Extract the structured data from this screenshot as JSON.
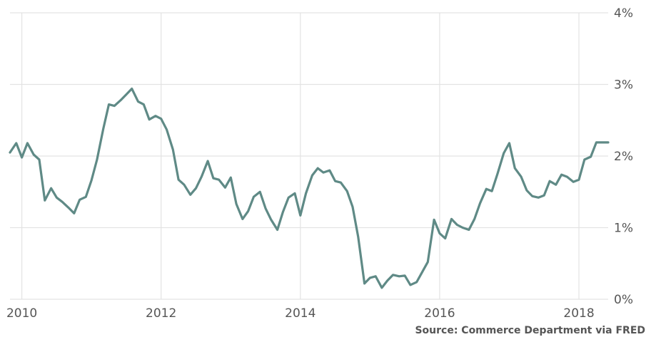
{
  "source": "Source: Commerce Department via FRED",
  "colors": {
    "line": "#5f8a86",
    "grid": "#e3e3e3",
    "text": "#555555"
  },
  "chart_data": {
    "type": "line",
    "title": "",
    "xlabel": "",
    "ylabel": "",
    "grid": true,
    "legend": "none",
    "xlim": [
      2009.83,
      2018.42
    ],
    "ylim": [
      0,
      4
    ],
    "x_ticks": [
      {
        "value": 2010,
        "label": "2010"
      },
      {
        "value": 2012,
        "label": "2012"
      },
      {
        "value": 2014,
        "label": "2014"
      },
      {
        "value": 2016,
        "label": "2016"
      },
      {
        "value": 2018,
        "label": "2018"
      }
    ],
    "y_ticks": [
      {
        "value": 0,
        "label": "0%"
      },
      {
        "value": 1,
        "label": "1%"
      },
      {
        "value": 2,
        "label": "2%"
      },
      {
        "value": 3,
        "label": "3%"
      },
      {
        "value": 4,
        "label": "4%"
      }
    ],
    "series": [
      {
        "x": [
          2009.83,
          2009.92,
          2010.0,
          2010.08,
          2010.17,
          2010.25,
          2010.33,
          2010.42,
          2010.5,
          2010.58,
          2010.67,
          2010.75,
          2010.83,
          2010.92,
          2011.0,
          2011.08,
          2011.17,
          2011.25,
          2011.33,
          2011.42,
          2011.5,
          2011.58,
          2011.67,
          2011.75,
          2011.83,
          2011.92,
          2012.0,
          2012.08,
          2012.17,
          2012.25,
          2012.33,
          2012.42,
          2012.5,
          2012.58,
          2012.67,
          2012.75,
          2012.83,
          2012.92,
          2013.0,
          2013.08,
          2013.17,
          2013.25,
          2013.33,
          2013.42,
          2013.5,
          2013.58,
          2013.67,
          2013.75,
          2013.83,
          2013.92,
          2014.0,
          2014.08,
          2014.17,
          2014.25,
          2014.33,
          2014.42,
          2014.5,
          2014.58,
          2014.67,
          2014.75,
          2014.83,
          2014.92,
          2015.0,
          2015.08,
          2015.17,
          2015.25,
          2015.33,
          2015.42,
          2015.5,
          2015.58,
          2015.67,
          2015.75,
          2015.83,
          2015.92,
          2016.0,
          2016.08,
          2016.17,
          2016.25,
          2016.33,
          2016.42,
          2016.5,
          2016.58,
          2016.67,
          2016.75,
          2016.83,
          2016.92,
          2017.0,
          2017.08,
          2017.17,
          2017.25,
          2017.33,
          2017.42,
          2017.5,
          2017.58,
          2017.67,
          2017.75,
          2017.83,
          2017.92,
          2018.0,
          2018.08,
          2018.17,
          2018.25,
          2018.33,
          2018.42
        ],
        "values": [
          2.05,
          2.18,
          1.98,
          2.18,
          2.02,
          1.95,
          1.38,
          1.55,
          1.42,
          1.36,
          1.28,
          1.2,
          1.39,
          1.43,
          1.66,
          1.95,
          2.38,
          2.72,
          2.7,
          2.78,
          2.86,
          2.94,
          2.76,
          2.72,
          2.51,
          2.56,
          2.52,
          2.37,
          2.09,
          1.67,
          1.6,
          1.46,
          1.55,
          1.71,
          1.93,
          1.69,
          1.67,
          1.56,
          1.7,
          1.33,
          1.12,
          1.23,
          1.43,
          1.5,
          1.27,
          1.11,
          0.97,
          1.22,
          1.42,
          1.48,
          1.17,
          1.48,
          1.73,
          1.83,
          1.77,
          1.8,
          1.65,
          1.63,
          1.51,
          1.29,
          0.87,
          0.22,
          0.3,
          0.32,
          0.16,
          0.26,
          0.34,
          0.32,
          0.33,
          0.2,
          0.24,
          0.38,
          0.52,
          1.11,
          0.92,
          0.85,
          1.12,
          1.04,
          1.0,
          0.97,
          1.12,
          1.34,
          1.54,
          1.51,
          1.75,
          2.04,
          2.18,
          1.83,
          1.71,
          1.52,
          1.44,
          1.42,
          1.45,
          1.65,
          1.6,
          1.74,
          1.71,
          1.64,
          1.67,
          1.95,
          1.99,
          2.19,
          2.19,
          2.19
        ]
      }
    ]
  }
}
